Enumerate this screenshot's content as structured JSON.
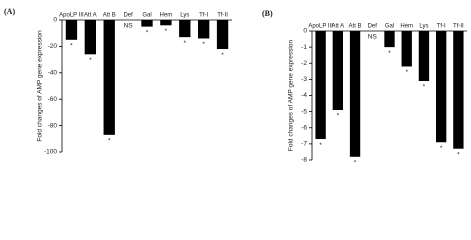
{
  "chart_data": [
    {
      "type": "bar",
      "title": "(A)",
      "ylabel": "Fold changes of AMP gene expression",
      "categories": [
        "ApoLP III",
        "Att A",
        "Att B",
        "Def",
        "Gal",
        "Hem",
        "Lys",
        "Tf-I",
        "Tf-II"
      ],
      "values": [
        -15,
        -26,
        -87,
        0,
        -5,
        -4,
        -13,
        -14,
        -22
      ],
      "annotations": [
        "*",
        "*",
        "*",
        "NS",
        "*",
        "*",
        "*",
        "*",
        "*"
      ],
      "color": "#000000",
      "ylim": [
        0,
        -100
      ],
      "yticks": [
        0,
        -20,
        -40,
        -60,
        -80,
        -100
      ]
    },
    {
      "type": "bar",
      "title": "(B)",
      "ylabel": "Fold changes of AMP gene expression",
      "categories": [
        "ApoLP III",
        "Att A",
        "Att B",
        "Def",
        "Gal",
        "Hem",
        "Lys",
        "Tf-I",
        "Tf-II"
      ],
      "values": [
        -6.7,
        -4.9,
        -7.8,
        0,
        -1.0,
        -2.2,
        -3.1,
        -6.9,
        -7.3
      ],
      "annotations": [
        "*",
        "*",
        "*",
        "NS",
        "*",
        "*",
        "*",
        "*",
        "*"
      ],
      "color": "#000000",
      "ylim": [
        0,
        -8
      ],
      "yticks": [
        0,
        -1,
        -2,
        -3,
        -4,
        -5,
        -6,
        -7,
        -8
      ]
    }
  ]
}
